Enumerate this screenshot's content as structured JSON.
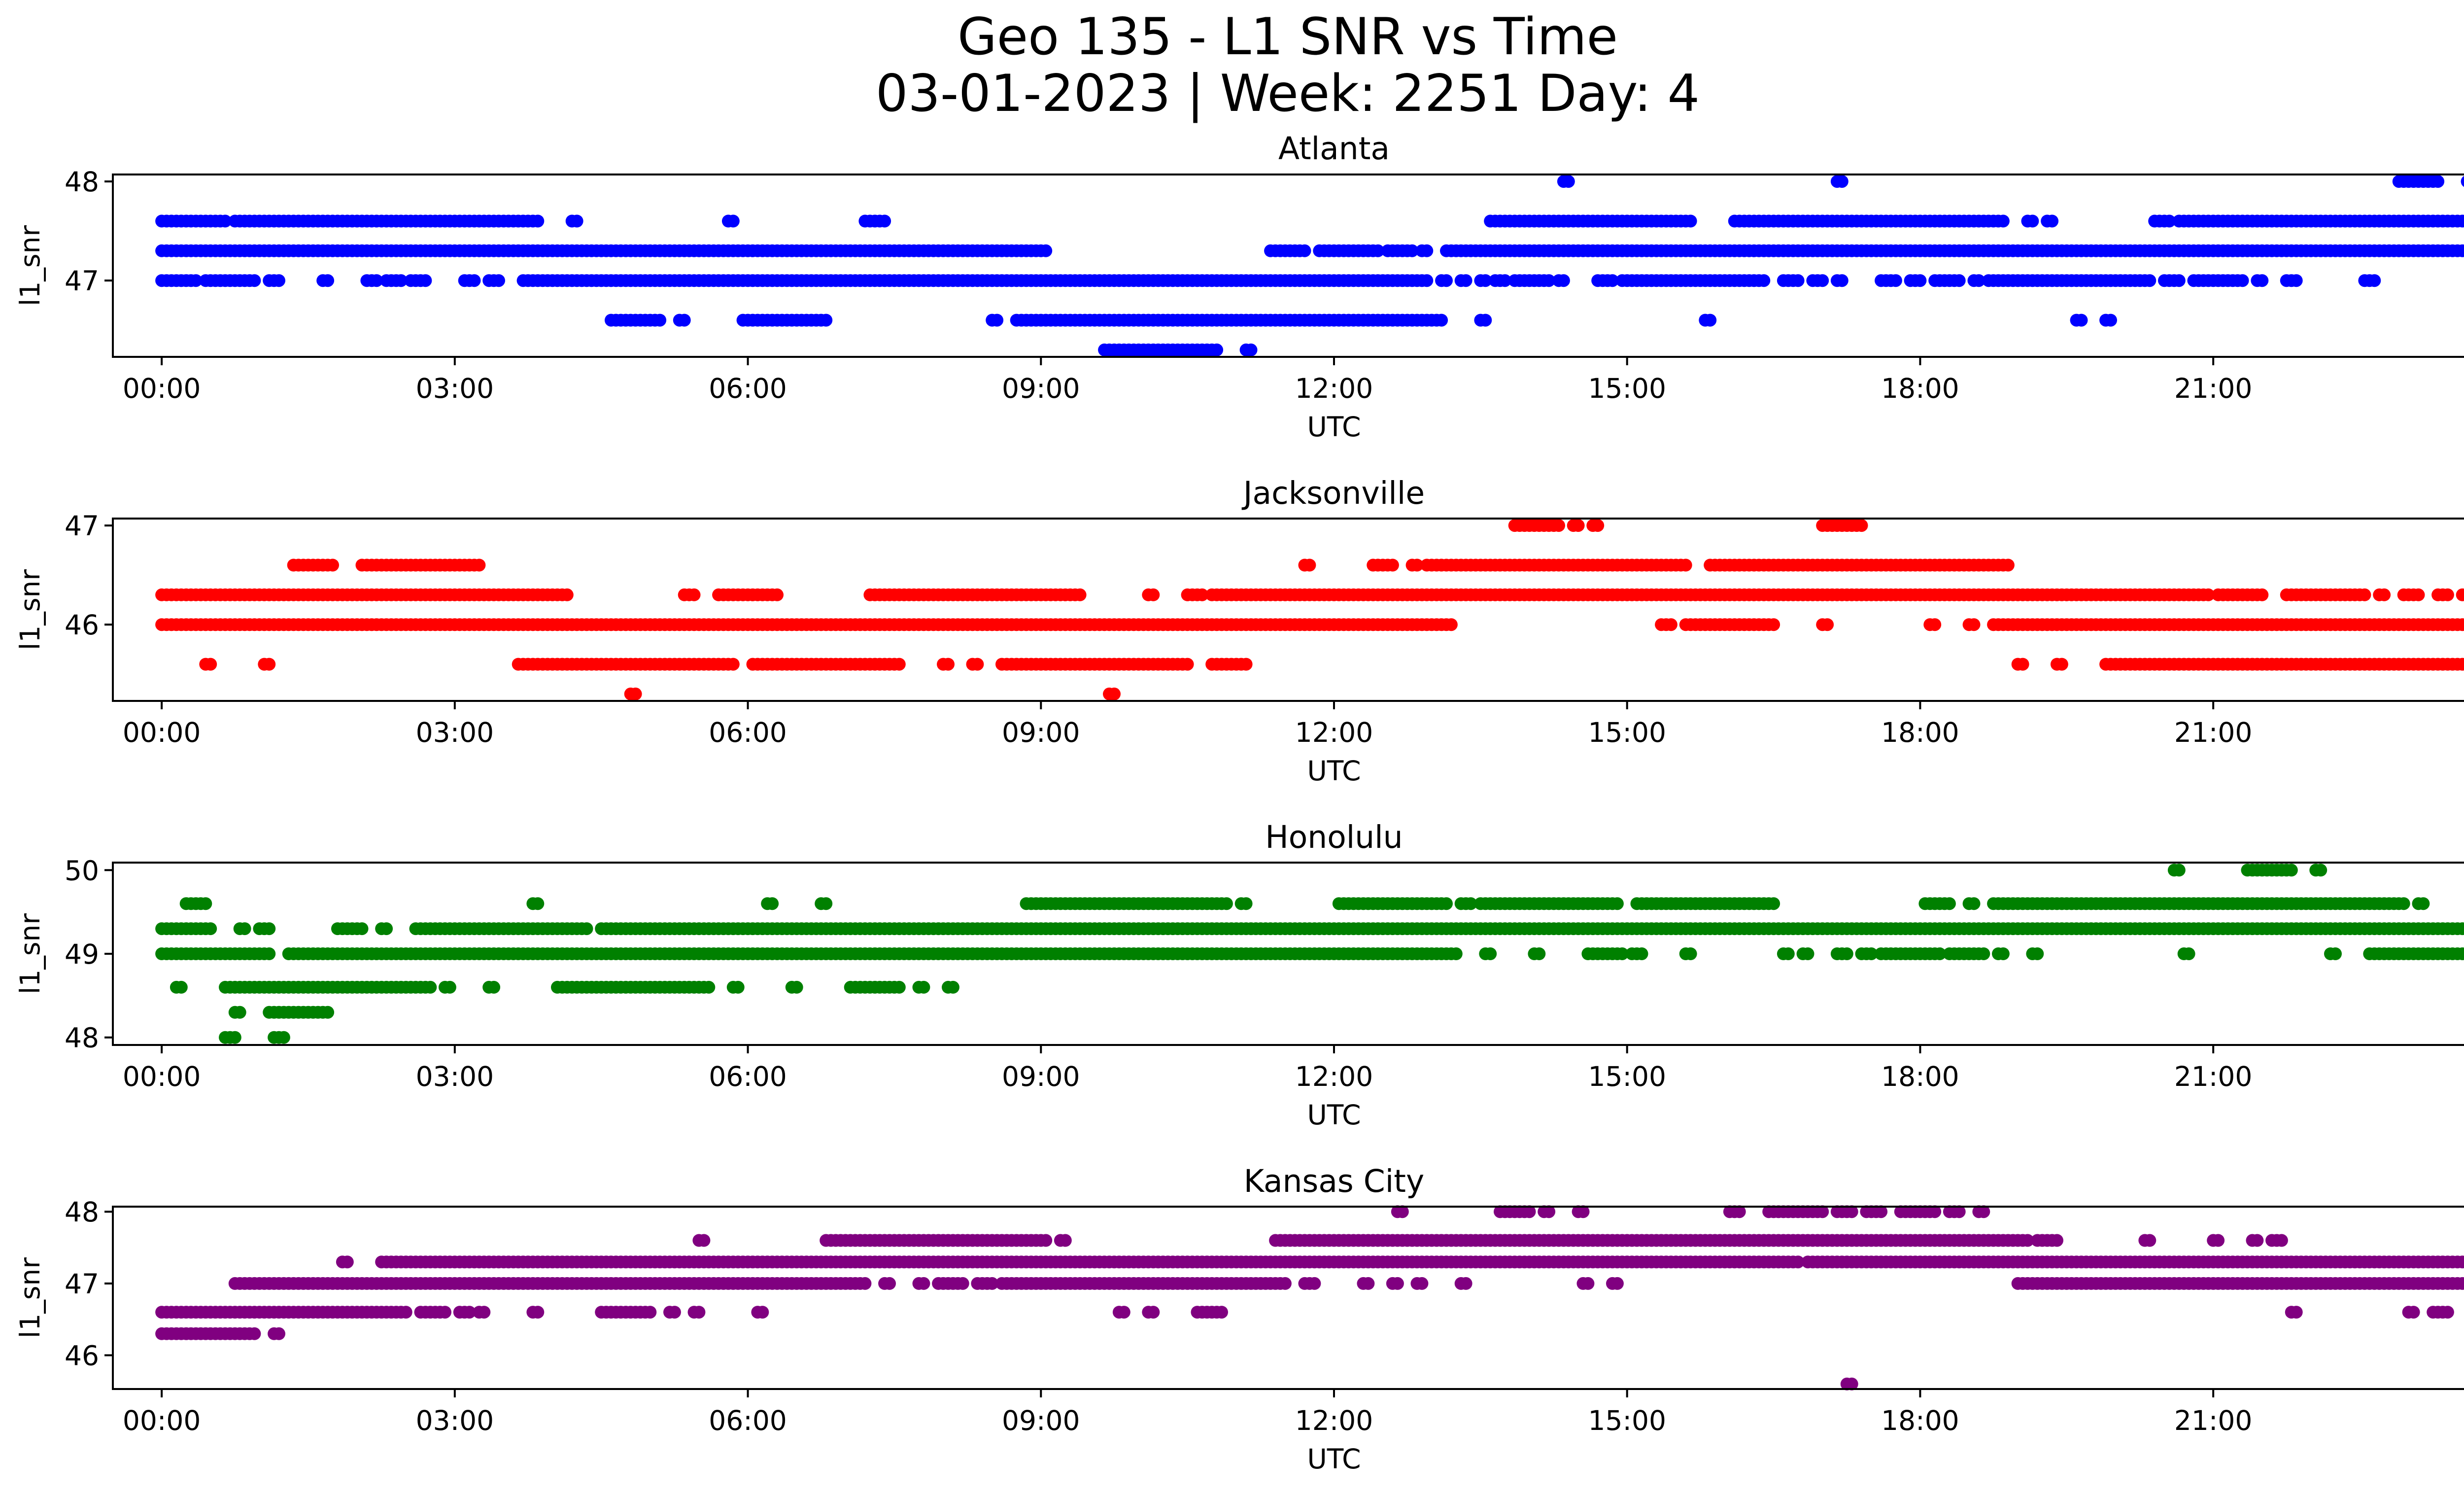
{
  "figure": {
    "title_line1": "Geo 135 - L1 SNR vs Time",
    "title_line2": "03-01-2023 | Week: 2251 Day: 4"
  },
  "chart_data": [
    {
      "type": "scatter",
      "title": "Atlanta",
      "xlabel": "UTC",
      "ylabel": "l1_snr",
      "color": "#0000ff",
      "xlim": [
        -0.5,
        24.5
      ],
      "ylim": [
        46.23,
        48.07
      ],
      "xticks": [
        "00:00",
        "03:00",
        "06:00",
        "09:00",
        "12:00",
        "15:00",
        "18:00",
        "21:00",
        "00:00"
      ],
      "yticks": [
        47,
        48
      ],
      "points": [
        {
          "y": 47.6,
          "segments": [
            [
              0,
              0.65
            ],
            [
              0.75,
              3.85
            ],
            [
              4.2,
              4.25
            ],
            [
              5.8,
              5.85
            ],
            [
              7.2,
              7.4
            ],
            [
              13.6,
              15.65
            ],
            [
              16.1,
              18.85
            ],
            [
              19.1,
              19.15
            ],
            [
              19.3,
              19.35
            ],
            [
              20.4,
              20.55
            ],
            [
              20.65,
              24
            ]
          ]
        },
        {
          "y": 47.3,
          "segments": [
            [
              0,
              9.05
            ],
            [
              11.35,
              11.7
            ],
            [
              11.85,
              12.0
            ],
            [
              12.05,
              12.45
            ],
            [
              12.55,
              12.8
            ],
            [
              12.9,
              12.95
            ],
            [
              13.15,
              24
            ]
          ]
        },
        {
          "y": 47.0,
          "segments": [
            [
              0,
              0.35
            ],
            [
              0.45,
              0.95
            ],
            [
              1.1,
              1.2
            ],
            [
              1.65,
              1.7
            ],
            [
              2.1,
              2.2
            ],
            [
              2.3,
              2.45
            ],
            [
              2.55,
              2.7
            ],
            [
              3.1,
              3.2
            ],
            [
              3.35,
              3.45
            ],
            [
              3.7,
              12.95
            ],
            [
              13.1,
              13.15
            ],
            [
              13.3,
              13.35
            ],
            [
              13.5,
              13.55
            ],
            [
              13.65,
              13.75
            ],
            [
              13.85,
              14.2
            ],
            [
              14.3,
              14.35
            ],
            [
              14.7,
              14.85
            ],
            [
              14.95,
              16.4
            ],
            [
              16.6,
              16.75
            ],
            [
              16.9,
              17.0
            ],
            [
              17.15,
              17.2
            ],
            [
              17.6,
              17.75
            ],
            [
              17.9,
              18.0
            ],
            [
              18.15,
              18.4
            ],
            [
              18.55,
              18.6
            ],
            [
              18.7,
              20.35
            ],
            [
              20.5,
              20.65
            ],
            [
              20.8,
              21.3
            ],
            [
              21.45,
              21.5
            ],
            [
              21.75,
              21.85
            ],
            [
              22.55,
              22.65
            ]
          ]
        },
        {
          "y": 46.6,
          "segments": [
            [
              4.6,
              5.1
            ],
            [
              5.3,
              5.35
            ],
            [
              5.95,
              6.8
            ],
            [
              8.5,
              8.55
            ],
            [
              8.75,
              13.1
            ],
            [
              13.5,
              13.55
            ],
            [
              15.8,
              15.85
            ],
            [
              19.6,
              19.65
            ],
            [
              19.9,
              19.95
            ]
          ]
        },
        {
          "y": 46.3,
          "segments": [
            [
              9.65,
              10.8
            ],
            [
              11.1,
              11.15
            ]
          ]
        },
        {
          "y": 48.0,
          "segments": [
            [
              14.35,
              14.4
            ],
            [
              17.15,
              17.2
            ],
            [
              22.9,
              23.3
            ],
            [
              23.6,
              23.7
            ]
          ]
        }
      ]
    },
    {
      "type": "scatter",
      "title": "Jacksonville",
      "xlabel": "UTC",
      "ylabel": "l1_snr",
      "color": "#ff0000",
      "xlim": [
        -0.5,
        24.5
      ],
      "ylim": [
        45.23,
        47.07
      ],
      "xticks": [
        "00:00",
        "03:00",
        "06:00",
        "09:00",
        "12:00",
        "15:00",
        "18:00",
        "21:00",
        "00:00"
      ],
      "yticks": [
        46,
        47
      ],
      "points": [
        {
          "y": 46.3,
          "segments": [
            [
              0,
              4.15
            ],
            [
              5.35,
              5.45
            ],
            [
              5.7,
              6.3
            ],
            [
              7.25,
              9.4
            ],
            [
              10.1,
              10.15
            ],
            [
              10.5,
              10.65
            ],
            [
              10.75,
              20.95
            ],
            [
              21.05,
              21.5
            ],
            [
              21.75,
              22.55
            ],
            [
              22.7,
              22.75
            ],
            [
              22.95,
              23.1
            ],
            [
              23.3,
              23.4
            ],
            [
              23.55,
              23.85
            ],
            [
              24,
              24.05
            ]
          ]
        },
        {
          "y": 46.0,
          "segments": [
            [
              0,
              13.2
            ],
            [
              15.35,
              15.45
            ],
            [
              15.6,
              16.5
            ],
            [
              17.0,
              17.05
            ],
            [
              18.1,
              18.15
            ],
            [
              18.5,
              18.55
            ],
            [
              18.75,
              24
            ]
          ]
        },
        {
          "y": 45.6,
          "segments": [
            [
              0.45,
              0.5
            ],
            [
              1.05,
              1.1
            ],
            [
              3.65,
              5.85
            ],
            [
              6.05,
              7.55
            ],
            [
              8.0,
              8.05
            ],
            [
              8.3,
              8.35
            ],
            [
              8.6,
              10.5
            ],
            [
              10.75,
              11.1
            ],
            [
              19.0,
              19.05
            ],
            [
              19.4,
              19.45
            ],
            [
              19.9,
              24
            ]
          ]
        },
        {
          "y": 46.6,
          "segments": [
            [
              1.35,
              1.75
            ],
            [
              2.05,
              3.25
            ],
            [
              11.7,
              11.75
            ],
            [
              12.4,
              12.6
            ],
            [
              12.8,
              12.85
            ],
            [
              12.95,
              15.6
            ],
            [
              15.85,
              18.9
            ]
          ]
        },
        {
          "y": 47.0,
          "segments": [
            [
              13.85,
              14.3
            ],
            [
              14.45,
              14.5
            ],
            [
              14.65,
              14.7
            ],
            [
              17.0,
              17.4
            ]
          ]
        },
        {
          "y": 45.3,
          "segments": [
            [
              4.8,
              4.85
            ],
            [
              9.7,
              9.75
            ]
          ]
        }
      ]
    },
    {
      "type": "scatter",
      "title": "Honolulu",
      "xlabel": "UTC",
      "ylabel": "l1_snr",
      "color": "#008000",
      "xlim": [
        -0.5,
        24.5
      ],
      "ylim": [
        47.91,
        50.09
      ],
      "xticks": [
        "00:00",
        "03:00",
        "06:00",
        "09:00",
        "12:00",
        "15:00",
        "18:00",
        "21:00",
        "00:00"
      ],
      "yticks": [
        48,
        49,
        50
      ],
      "points": [
        {
          "y": 49.3,
          "segments": [
            [
              0,
              0.5
            ],
            [
              0.8,
              0.85
            ],
            [
              1.0,
              1.1
            ],
            [
              1.8,
              2.05
            ],
            [
              2.25,
              2.3
            ],
            [
              2.6,
              4.35
            ],
            [
              4.5,
              4.55
            ],
            [
              4.6,
              24
            ]
          ]
        },
        {
          "y": 49.0,
          "segments": [
            [
              0,
              1.1
            ],
            [
              1.3,
              13.25
            ],
            [
              13.55,
              13.6
            ],
            [
              14.05,
              14.1
            ],
            [
              14.6,
              14.95
            ],
            [
              15.05,
              15.15
            ],
            [
              15.6,
              15.65
            ],
            [
              16.6,
              16.65
            ],
            [
              16.8,
              16.85
            ],
            [
              17.15,
              17.25
            ],
            [
              17.4,
              17.5
            ],
            [
              17.6,
              18.2
            ],
            [
              18.3,
              18.65
            ],
            [
              18.8,
              18.85
            ],
            [
              19.15,
              19.2
            ],
            [
              20.7,
              20.75
            ],
            [
              22.2,
              22.25
            ],
            [
              22.6,
              24
            ]
          ]
        },
        {
          "y": 49.6,
          "segments": [
            [
              0.25,
              0.45
            ],
            [
              3.8,
              3.85
            ],
            [
              6.2,
              6.25
            ],
            [
              6.75,
              6.8
            ],
            [
              8.85,
              10.9
            ],
            [
              11.05,
              11.1
            ],
            [
              12.05,
              13.15
            ],
            [
              13.3,
              13.4
            ],
            [
              13.5,
              14.9
            ],
            [
              15.1,
              16.5
            ],
            [
              18.05,
              18.3
            ],
            [
              18.5,
              18.55
            ],
            [
              18.75,
              18.8
            ],
            [
              18.85,
              22.95
            ],
            [
              23.1,
              23.15
            ],
            [
              23.85,
              24
            ]
          ]
        },
        {
          "y": 48.6,
          "segments": [
            [
              0.15,
              0.2
            ],
            [
              0.65,
              2.75
            ],
            [
              2.9,
              2.95
            ],
            [
              3.35,
              3.4
            ],
            [
              4.05,
              5.6
            ],
            [
              5.85,
              5.9
            ],
            [
              6.45,
              6.5
            ],
            [
              7.05,
              7.55
            ],
            [
              7.75,
              7.8
            ],
            [
              8.05,
              8.1
            ]
          ]
        },
        {
          "y": 48.3,
          "segments": [
            [
              0.75,
              0.8
            ],
            [
              1.1,
              1.7
            ]
          ]
        },
        {
          "y": 48.0,
          "segments": [
            [
              0.65,
              0.75
            ],
            [
              1.15,
              1.25
            ]
          ]
        },
        {
          "y": 50.0,
          "segments": [
            [
              20.6,
              20.65
            ],
            [
              21.35,
              21.8
            ],
            [
              22.05,
              22.1
            ]
          ]
        }
      ]
    },
    {
      "type": "scatter",
      "title": "Kansas City",
      "xlabel": "UTC",
      "ylabel": "l1_snr",
      "color": "#800080",
      "xlim": [
        -0.5,
        24.5
      ],
      "ylim": [
        45.53,
        48.07
      ],
      "xticks": [
        "00:00",
        "03:00",
        "06:00",
        "09:00",
        "12:00",
        "15:00",
        "18:00",
        "21:00",
        "00:00"
      ],
      "yticks": [
        46,
        47,
        48
      ],
      "points": [
        {
          "y": 46.6,
          "segments": [
            [
              0,
              2.5
            ],
            [
              2.65,
              2.9
            ],
            [
              3.05,
              3.15
            ],
            [
              3.25,
              3.3
            ],
            [
              3.8,
              3.85
            ],
            [
              4.5,
              5.0
            ],
            [
              5.2,
              5.25
            ],
            [
              5.45,
              5.5
            ],
            [
              6.1,
              6.15
            ],
            [
              9.8,
              9.85
            ],
            [
              10.1,
              10.15
            ],
            [
              10.6,
              10.85
            ],
            [
              21.8,
              21.85
            ],
            [
              23.0,
              23.05
            ],
            [
              23.25,
              23.4
            ],
            [
              23.9,
              23.95
            ]
          ]
        },
        {
          "y": 46.3,
          "segments": [
            [
              0,
              0.95
            ],
            [
              1.15,
              1.2
            ]
          ]
        },
        {
          "y": 47.0,
          "segments": [
            [
              0.75,
              7.2
            ],
            [
              7.4,
              7.45
            ],
            [
              7.75,
              7.8
            ],
            [
              7.95,
              8.2
            ],
            [
              8.35,
              8.5
            ],
            [
              8.6,
              11.5
            ],
            [
              11.7,
              11.8
            ],
            [
              12.3,
              12.35
            ],
            [
              12.6,
              12.65
            ],
            [
              12.85,
              12.9
            ],
            [
              13.3,
              13.35
            ],
            [
              14.55,
              14.6
            ],
            [
              14.85,
              14.9
            ],
            [
              19.0,
              24
            ]
          ]
        },
        {
          "y": 47.3,
          "segments": [
            [
              1.85,
              1.9
            ],
            [
              2.25,
              2.45
            ],
            [
              2.5,
              16.75
            ],
            [
              16.85,
              24
            ]
          ]
        },
        {
          "y": 47.6,
          "segments": [
            [
              5.5,
              5.55
            ],
            [
              6.8,
              9.05
            ],
            [
              9.2,
              9.25
            ],
            [
              11.4,
              19.1
            ],
            [
              19.2,
              19.4
            ],
            [
              20.3,
              20.35
            ],
            [
              21.0,
              21.05
            ],
            [
              21.4,
              21.45
            ],
            [
              21.6,
              21.7
            ]
          ]
        },
        {
          "y": 48.0,
          "segments": [
            [
              12.65,
              12.7
            ],
            [
              13.7,
              14.0
            ],
            [
              14.15,
              14.2
            ],
            [
              14.5,
              14.55
            ],
            [
              16.05,
              16.15
            ],
            [
              16.45,
              17.0
            ],
            [
              17.15,
              17.3
            ],
            [
              17.45,
              17.6
            ],
            [
              17.8,
              18.15
            ],
            [
              18.3,
              18.4
            ],
            [
              18.6,
              18.65
            ]
          ]
        },
        {
          "y": 45.6,
          "segments": [
            [
              17.25,
              17.3
            ]
          ]
        }
      ]
    }
  ]
}
